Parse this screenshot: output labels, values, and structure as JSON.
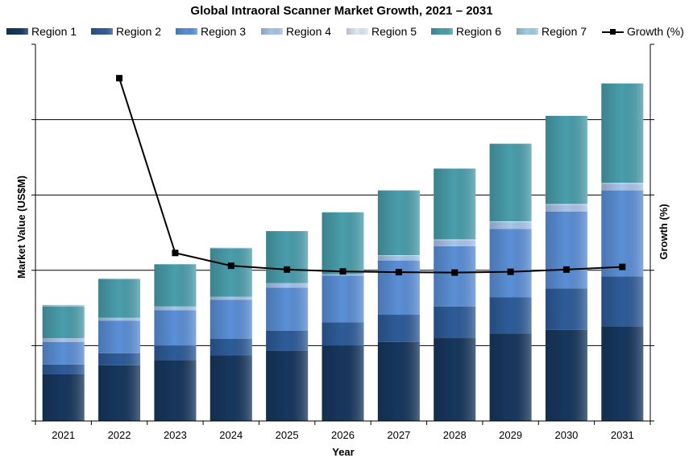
{
  "chart_data": {
    "type": "bar",
    "stacked": true,
    "title": "Global Intraoral Scanner Market Growth, 2021 – 2031",
    "xlabel": "Year",
    "ylabel": "Market Value (US$M)",
    "y2label": "Growth (%)",
    "categories": [
      "2021",
      "2022",
      "2023",
      "2024",
      "2025",
      "2026",
      "2027",
      "2028",
      "2029",
      "2030",
      "2031"
    ],
    "ylim": [
      0,
      5
    ],
    "y2lim": [
      0,
      100
    ],
    "grid": true,
    "legend_position": "top",
    "series": [
      {
        "name": "Region 1",
        "color": "#17375e",
        "values": [
          0.62,
          0.74,
          0.81,
          0.87,
          0.93,
          1.0,
          1.05,
          1.1,
          1.16,
          1.21,
          1.25
        ]
      },
      {
        "name": "Region 2",
        "color": "#2e5c99",
        "values": [
          0.13,
          0.16,
          0.19,
          0.22,
          0.27,
          0.31,
          0.36,
          0.42,
          0.48,
          0.55,
          0.67
        ]
      },
      {
        "name": "Region 3",
        "color": "#5b8fd6",
        "values": [
          0.3,
          0.43,
          0.47,
          0.52,
          0.57,
          0.62,
          0.72,
          0.8,
          0.91,
          1.02,
          1.14
        ]
      },
      {
        "name": "Region 4",
        "color": "#a9c4ea",
        "values": [
          0.05,
          0.04,
          0.05,
          0.04,
          0.06,
          0.02,
          0.06,
          0.08,
          0.09,
          0.09,
          0.09
        ]
      },
      {
        "name": "Region 5",
        "color": "#dde7f6",
        "values": [
          0.0,
          0.0,
          0.0,
          0.0,
          0.0,
          0.0,
          0.01,
          0.01,
          0.01,
          0.01,
          0.01
        ]
      },
      {
        "name": "Region 6",
        "color": "#4a9eac",
        "values": [
          0.42,
          0.51,
          0.56,
          0.64,
          0.69,
          0.82,
          0.86,
          0.94,
          1.03,
          1.17,
          1.32
        ]
      },
      {
        "name": "Region 7",
        "color": "#9fcde0",
        "values": [
          0.02,
          0.01,
          0.0,
          0.01,
          0.0,
          0.0,
          0.0,
          0.0,
          0.0,
          0.0,
          0.0
        ]
      }
    ],
    "line_series": {
      "name": "Growth (%)",
      "axis": "secondary",
      "color": "#000000",
      "values": [
        null,
        91.0,
        44.6,
        41.2,
        40.2,
        39.7,
        39.5,
        39.4,
        39.6,
        40.2,
        40.9
      ]
    }
  }
}
